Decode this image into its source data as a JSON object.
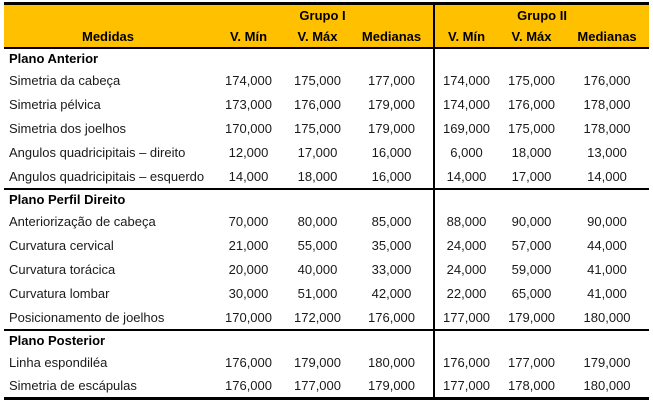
{
  "accent_color": "#FFC000",
  "border_color": "#000000",
  "table": {
    "group_headers": [
      "Grupo I",
      "Grupo II"
    ],
    "measure_header": "Medidas",
    "sub_headers": [
      "V. Mín",
      "V. Máx",
      "Medianas"
    ],
    "sections": [
      {
        "title": "Plano Anterior",
        "rows": [
          {
            "label": "Simetria da cabeça",
            "g1": [
              "174,000",
              "175,000",
              "177,000"
            ],
            "g2": [
              "174,000",
              "175,000",
              "176,000"
            ]
          },
          {
            "label": "Simetria pélvica",
            "g1": [
              "173,000",
              "176,000",
              "179,000"
            ],
            "g2": [
              "174,000",
              "176,000",
              "178,000"
            ]
          },
          {
            "label": "Simetria dos joelhos",
            "g1": [
              "170,000",
              "175,000",
              "179,000"
            ],
            "g2": [
              "169,000",
              "175,000",
              "178,000"
            ]
          },
          {
            "label": "Angulos quadricipitais – direito",
            "g1": [
              "12,000",
              "17,000",
              "16,000"
            ],
            "g2": [
              "6,000",
              "18,000",
              "13,000"
            ]
          },
          {
            "label": "Angulos quadricipitais – esquerdo",
            "g1": [
              "14,000",
              "18,000",
              "16,000"
            ],
            "g2": [
              "14,000",
              "17,000",
              "14,000"
            ]
          }
        ]
      },
      {
        "title": "Plano Perfil Direito",
        "rows": [
          {
            "label": "Anteriorização de cabeça",
            "g1": [
              "70,000",
              "80,000",
              "85,000"
            ],
            "g2": [
              "88,000",
              "90,000",
              "90,000"
            ]
          },
          {
            "label": "Curvatura cervical",
            "g1": [
              "21,000",
              "55,000",
              "35,000"
            ],
            "g2": [
              "24,000",
              "57,000",
              "44,000"
            ]
          },
          {
            "label": "Curvatura torácica",
            "g1": [
              "20,000",
              "40,000",
              "33,000"
            ],
            "g2": [
              "24,000",
              "59,000",
              "41,000"
            ]
          },
          {
            "label": "Curvatura lombar",
            "g1": [
              "30,000",
              "51,000",
              "42,000"
            ],
            "g2": [
              "22,000",
              "65,000",
              "41,000"
            ]
          },
          {
            "label": "Posicionamento de joelhos",
            "g1": [
              "170,000",
              "172,000",
              "176,000"
            ],
            "g2": [
              "177,000",
              "179,000",
              "180,000"
            ]
          }
        ]
      },
      {
        "title": "Plano Posterior",
        "rows": [
          {
            "label": "Linha espondiléa",
            "g1": [
              "176,000",
              "179,000",
              "180,000"
            ],
            "g2": [
              "176,000",
              "177,000",
              "179,000"
            ]
          },
          {
            "label": "Simetria de escápulas",
            "g1": [
              "176,000",
              "177,000",
              "179,000"
            ],
            "g2": [
              "177,000",
              "178,000",
              "180,000"
            ]
          }
        ]
      }
    ]
  },
  "chart_data": {
    "type": "table",
    "title": "",
    "columns": [
      "Medidas",
      "Grupo I V. Mín",
      "Grupo I V. Máx",
      "Grupo I Medianas",
      "Grupo II V. Mín",
      "Grupo II V. Máx",
      "Grupo II Medianas"
    ],
    "rows": [
      [
        "Plano Anterior",
        "",
        "",
        "",
        "",
        "",
        ""
      ],
      [
        "Simetria da cabeça",
        "174,000",
        "175,000",
        "177,000",
        "174,000",
        "175,000",
        "176,000"
      ],
      [
        "Simetria pélvica",
        "173,000",
        "176,000",
        "179,000",
        "174,000",
        "176,000",
        "178,000"
      ],
      [
        "Simetria dos joelhos",
        "170,000",
        "175,000",
        "179,000",
        "169,000",
        "175,000",
        "178,000"
      ],
      [
        "Angulos quadricipitais – direito",
        "12,000",
        "17,000",
        "16,000",
        "6,000",
        "18,000",
        "13,000"
      ],
      [
        "Angulos quadricipitais – esquerdo",
        "14,000",
        "18,000",
        "16,000",
        "14,000",
        "17,000",
        "14,000"
      ],
      [
        "Plano Perfil Direito",
        "",
        "",
        "",
        "",
        "",
        ""
      ],
      [
        "Anteriorização de cabeça",
        "70,000",
        "80,000",
        "85,000",
        "88,000",
        "90,000",
        "90,000"
      ],
      [
        "Curvatura cervical",
        "21,000",
        "55,000",
        "35,000",
        "24,000",
        "57,000",
        "44,000"
      ],
      [
        "Curvatura torácica",
        "20,000",
        "40,000",
        "33,000",
        "24,000",
        "59,000",
        "41,000"
      ],
      [
        "Curvatura lombar",
        "30,000",
        "51,000",
        "42,000",
        "22,000",
        "65,000",
        "41,000"
      ],
      [
        "Posicionamento de joelhos",
        "170,000",
        "172,000",
        "176,000",
        "177,000",
        "179,000",
        "180,000"
      ],
      [
        "Plano Posterior",
        "",
        "",
        "",
        "",
        "",
        ""
      ],
      [
        "Linha espondiléa",
        "176,000",
        "179,000",
        "180,000",
        "176,000",
        "177,000",
        "179,000"
      ],
      [
        "Simetria de escápulas",
        "176,000",
        "177,000",
        "179,000",
        "177,000",
        "178,000",
        "180,000"
      ]
    ]
  }
}
